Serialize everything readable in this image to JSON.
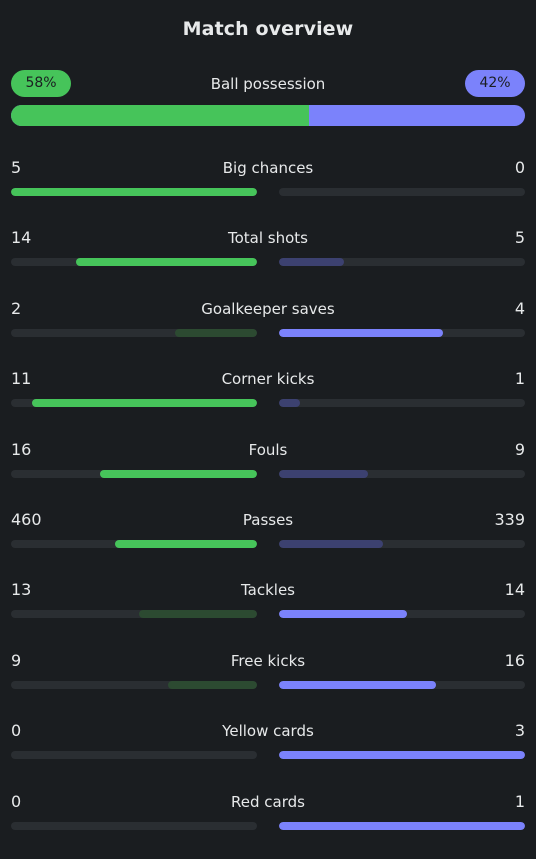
{
  "title": "Match overview",
  "colors": {
    "home_strong": "#46c45a",
    "home_weak": "#2c4a31",
    "away_strong": "#7b82fb",
    "away_weak": "#3c4170",
    "track": "#2a2e32"
  },
  "possession": {
    "label": "Ball possession",
    "home_text": "58%",
    "away_text": "42%",
    "home_share": 0.58
  },
  "stats": [
    {
      "label": "Big chances",
      "home": "5",
      "away": "0"
    },
    {
      "label": "Total shots",
      "home": "14",
      "away": "5"
    },
    {
      "label": "Goalkeeper saves",
      "home": "2",
      "away": "4"
    },
    {
      "label": "Corner kicks",
      "home": "11",
      "away": "1"
    },
    {
      "label": "Fouls",
      "home": "16",
      "away": "9"
    },
    {
      "label": "Passes",
      "home": "460",
      "away": "339"
    },
    {
      "label": "Tackles",
      "home": "13",
      "away": "14"
    },
    {
      "label": "Free kicks",
      "home": "9",
      "away": "16"
    },
    {
      "label": "Yellow cards",
      "home": "0",
      "away": "3"
    },
    {
      "label": "Red cards",
      "home": "0",
      "away": "1"
    }
  ]
}
